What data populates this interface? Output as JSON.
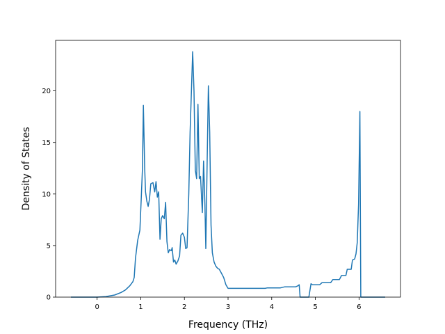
{
  "chart_data": {
    "type": "line",
    "title": "",
    "xlabel": "Frequency (THz)",
    "ylabel": "Density of States",
    "xlim": [
      -0.95,
      6.95
    ],
    "ylim": [
      0,
      24.9
    ],
    "xticks": [
      0,
      1,
      2,
      3,
      4,
      5,
      6
    ],
    "yticks": [
      0,
      5,
      10,
      15,
      20
    ],
    "grid": false,
    "legend": "none",
    "series": [
      {
        "color": "#1f77b4",
        "points": [
          [
            -0.6,
            0
          ],
          [
            0.0,
            0
          ],
          [
            0.2,
            0.05
          ],
          [
            0.4,
            0.2
          ],
          [
            0.55,
            0.45
          ],
          [
            0.65,
            0.7
          ],
          [
            0.75,
            1.1
          ],
          [
            0.82,
            1.5
          ],
          [
            0.85,
            1.9
          ],
          [
            0.88,
            3.8
          ],
          [
            0.93,
            5.5
          ],
          [
            0.98,
            6.5
          ],
          [
            1.01,
            9.5
          ],
          [
            1.04,
            12.5
          ],
          [
            1.06,
            18.6
          ],
          [
            1.09,
            12.5
          ],
          [
            1.11,
            10.2
          ],
          [
            1.14,
            9.3
          ],
          [
            1.17,
            8.8
          ],
          [
            1.2,
            9.5
          ],
          [
            1.23,
            11.0
          ],
          [
            1.28,
            11.1
          ],
          [
            1.32,
            10.2
          ],
          [
            1.35,
            11.2
          ],
          [
            1.38,
            9.7
          ],
          [
            1.41,
            10.2
          ],
          [
            1.44,
            5.6
          ],
          [
            1.47,
            7.6
          ],
          [
            1.5,
            7.9
          ],
          [
            1.54,
            7.6
          ],
          [
            1.57,
            9.2
          ],
          [
            1.6,
            5.4
          ],
          [
            1.63,
            4.3
          ],
          [
            1.66,
            4.6
          ],
          [
            1.7,
            4.5
          ],
          [
            1.72,
            4.8
          ],
          [
            1.75,
            3.4
          ],
          [
            1.78,
            3.6
          ],
          [
            1.81,
            3.2
          ],
          [
            1.85,
            3.5
          ],
          [
            1.89,
            4.0
          ],
          [
            1.92,
            6.0
          ],
          [
            1.96,
            6.2
          ],
          [
            2.0,
            5.8
          ],
          [
            2.03,
            4.7
          ],
          [
            2.06,
            4.8
          ],
          [
            2.1,
            10.0
          ],
          [
            2.13,
            16.0
          ],
          [
            2.16,
            20.0
          ],
          [
            2.19,
            23.8
          ],
          [
            2.22,
            20.0
          ],
          [
            2.25,
            12.3
          ],
          [
            2.28,
            11.5
          ],
          [
            2.31,
            18.7
          ],
          [
            2.34,
            11.5
          ],
          [
            2.37,
            11.7
          ],
          [
            2.41,
            8.2
          ],
          [
            2.44,
            13.2
          ],
          [
            2.47,
            9.0
          ],
          [
            2.49,
            4.7
          ],
          [
            2.52,
            13.0
          ],
          [
            2.55,
            20.5
          ],
          [
            2.58,
            16.0
          ],
          [
            2.61,
            7.0
          ],
          [
            2.64,
            4.3
          ],
          [
            2.68,
            3.4
          ],
          [
            2.72,
            3.0
          ],
          [
            2.76,
            2.8
          ],
          [
            2.8,
            2.7
          ],
          [
            2.85,
            2.3
          ],
          [
            2.9,
            1.9
          ],
          [
            2.95,
            1.2
          ],
          [
            3.0,
            0.85
          ],
          [
            3.3,
            0.85
          ],
          [
            3.6,
            0.85
          ],
          [
            3.85,
            0.85
          ],
          [
            3.9,
            0.9
          ],
          [
            4.2,
            0.9
          ],
          [
            4.3,
            1.0
          ],
          [
            4.55,
            1.0
          ],
          [
            4.6,
            1.1
          ],
          [
            4.63,
            1.2
          ],
          [
            4.65,
            0
          ],
          [
            4.85,
            0
          ],
          [
            4.9,
            1.3
          ],
          [
            4.93,
            1.2
          ],
          [
            5.1,
            1.2
          ],
          [
            5.15,
            1.4
          ],
          [
            5.35,
            1.4
          ],
          [
            5.4,
            1.7
          ],
          [
            5.55,
            1.7
          ],
          [
            5.6,
            2.1
          ],
          [
            5.7,
            2.1
          ],
          [
            5.73,
            2.7
          ],
          [
            5.82,
            2.7
          ],
          [
            5.85,
            3.6
          ],
          [
            5.9,
            3.7
          ],
          [
            5.93,
            4.2
          ],
          [
            5.96,
            5.3
          ],
          [
            5.99,
            9.0
          ],
          [
            6.02,
            18.0
          ],
          [
            6.04,
            0
          ],
          [
            6.6,
            0
          ]
        ]
      }
    ]
  }
}
